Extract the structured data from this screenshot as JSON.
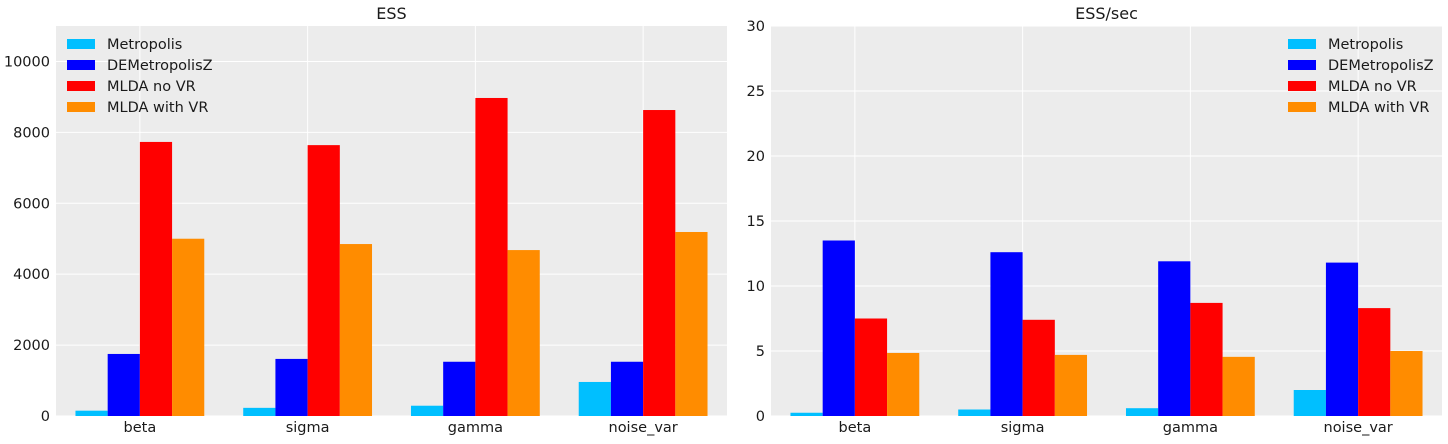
{
  "chart_data": [
    {
      "type": "bar",
      "title": "ESS",
      "xlabel": "",
      "ylabel": "",
      "categories": [
        "beta",
        "sigma",
        "gamma",
        "noise_var"
      ],
      "ylim": [
        0,
        11000
      ],
      "yticks": [
        0,
        2000,
        4000,
        6000,
        8000,
        10000
      ],
      "grid": true,
      "legend_position": "top-left",
      "series": [
        {
          "name": "Metropolis",
          "color": "#00bfff",
          "values": [
            150,
            230,
            290,
            960
          ]
        },
        {
          "name": "DEMetropolisZ",
          "color": "#0000ff",
          "values": [
            1750,
            1610,
            1530,
            1530
          ]
        },
        {
          "name": "MLDA no VR",
          "color": "#ff0000",
          "values": [
            7730,
            7640,
            8970,
            8630
          ]
        },
        {
          "name": "MLDA with VR",
          "color": "#ff8c00",
          "values": [
            5000,
            4850,
            4680,
            5190
          ]
        }
      ]
    },
    {
      "type": "bar",
      "title": "ESS/sec",
      "xlabel": "",
      "ylabel": "",
      "categories": [
        "beta",
        "sigma",
        "gamma",
        "noise_var"
      ],
      "ylim": [
        0,
        30
      ],
      "yticks": [
        0,
        5,
        10,
        15,
        20,
        25,
        30
      ],
      "grid": true,
      "legend_position": "top-right",
      "series": [
        {
          "name": "Metropolis",
          "color": "#00bfff",
          "values": [
            0.25,
            0.5,
            0.6,
            2.0
          ]
        },
        {
          "name": "DEMetropolisZ",
          "color": "#0000ff",
          "values": [
            13.5,
            12.6,
            11.9,
            11.8
          ]
        },
        {
          "name": "MLDA no VR",
          "color": "#ff0000",
          "values": [
            7.5,
            7.4,
            8.7,
            8.3
          ]
        },
        {
          "name": "MLDA with VR",
          "color": "#ff8c00",
          "values": [
            4.85,
            4.7,
            4.55,
            5.0
          ]
        }
      ]
    }
  ]
}
